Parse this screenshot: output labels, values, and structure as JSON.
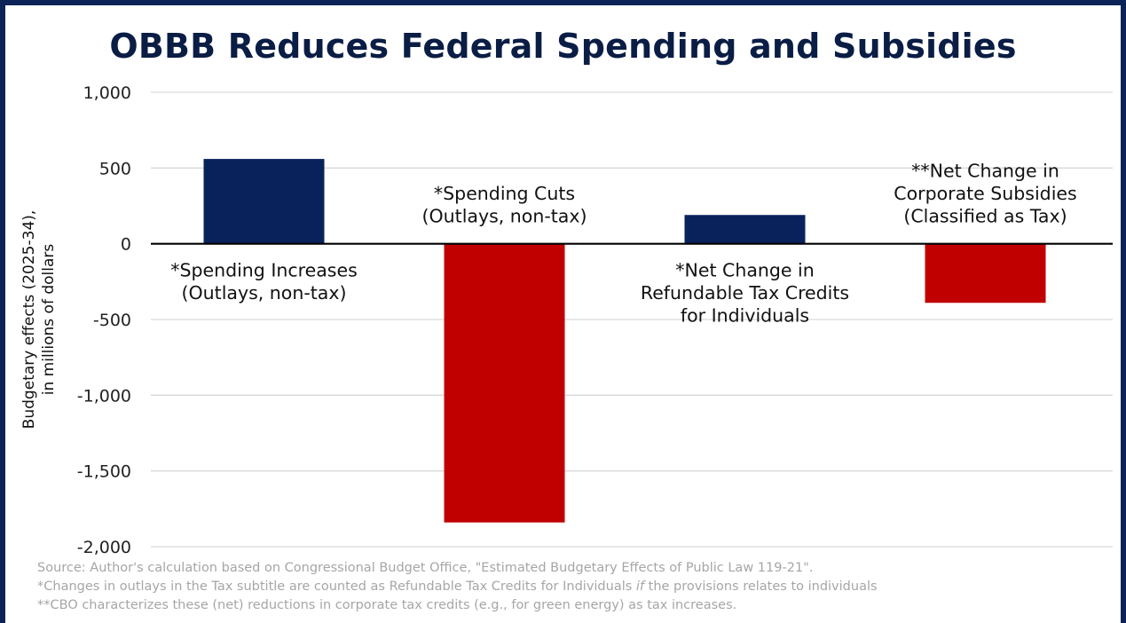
{
  "chart_data": {
    "type": "bar",
    "title": "OBBB Reduces Federal Spending and Subsidies",
    "ylabel_lines": [
      "Budgetary effects (2025-34),",
      "in millions of dollars"
    ],
    "ylim": [
      -2000,
      1000
    ],
    "yticks": [
      1000,
      500,
      0,
      -500,
      -1000,
      -1500,
      -2000
    ],
    "ytick_labels": [
      "1,000",
      "500",
      "0",
      "-500",
      "-1,000",
      "-1,500",
      "-2,000"
    ],
    "grid": true,
    "categories": [
      {
        "lines": [
          "*Spending Increases",
          "(Outlays, non-tax)"
        ],
        "value": 560,
        "color": "#0a225c",
        "label_pos": "below-axis"
      },
      {
        "lines": [
          "*Spending Cuts",
          "(Outlays, non-tax)"
        ],
        "value": -1840,
        "color": "#c00000",
        "label_pos": "above-axis"
      },
      {
        "lines": [
          "*Net Change in",
          "Refundable Tax Credits",
          "for Individuals"
        ],
        "value": 190,
        "color": "#0a225c",
        "label_pos": "below-axis"
      },
      {
        "lines": [
          "**Net Change in",
          "Corporate Subsidies",
          "(Classified as Tax)"
        ],
        "value": -390,
        "color": "#c00000",
        "label_pos": "above-axis"
      }
    ]
  },
  "notes": [
    "Source: Author's calculation based on Congressional Budget Office, \"Estimated Budgetary Effects of Public Law 119-21\".",
    "*Changes in outlays in the Tax subtitle are counted as Refundable Tax Credits for Individuals ",
    "if",
    " the provisions relates to individuals",
    "**CBO characterizes these (net) reductions in corporate tax credits (e.g., for green energy) as tax increases."
  ]
}
